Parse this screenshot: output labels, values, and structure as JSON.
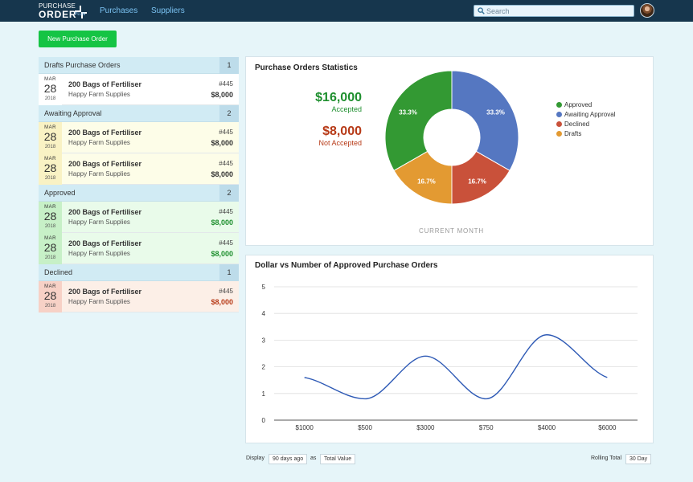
{
  "header": {
    "logo_line1": "PURCHASE",
    "logo_line2": "ORDER",
    "logo_plus": "PLUS",
    "nav": [
      "Purchases",
      "Suppliers"
    ],
    "search_placeholder": "Search",
    "icons": {
      "search": "search-icon",
      "avatar": "avatar"
    }
  },
  "actions": {
    "new_order": "New Purchase Order"
  },
  "colors": {
    "approved": "#339933",
    "awaiting": "#5577c1",
    "declined": "#c9513a",
    "drafts": "#e39a32",
    "green_text": "#1e8f2e",
    "red_text": "#b73a17"
  },
  "groups": [
    {
      "title": "Drafts Purchase Orders",
      "count": "1",
      "status": "draft",
      "items": [
        {
          "month": "MAR",
          "day": "28",
          "year": "2018",
          "name": "200 Bags of Fertiliser",
          "supplier": "Happy Farm Supplies",
          "number": "#445",
          "amount": "$8,000"
        }
      ]
    },
    {
      "title": "Awaiting Approval",
      "count": "2",
      "status": "awaiting",
      "items": [
        {
          "month": "MAR",
          "day": "28",
          "year": "2018",
          "name": "200 Bags of Fertiliser",
          "supplier": "Happy Farm Supplies",
          "number": "#445",
          "amount": "$8,000"
        },
        {
          "month": "MAR",
          "day": "28",
          "year": "2018",
          "name": "200 Bags of Fertiliser",
          "supplier": "Happy Farm Supplies",
          "number": "#445",
          "amount": "$8,000"
        }
      ]
    },
    {
      "title": "Approved",
      "count": "2",
      "status": "approved",
      "items": [
        {
          "month": "MAR",
          "day": "28",
          "year": "2018",
          "name": "200 Bags of Fertiliser",
          "supplier": "Happy Farm Supplies",
          "number": "#445",
          "amount": "$8,000"
        },
        {
          "month": "MAR",
          "day": "28",
          "year": "2018",
          "name": "200 Bags of Fertiliser",
          "supplier": "Happy Farm Supplies",
          "number": "#445",
          "amount": "$8,000"
        }
      ]
    },
    {
      "title": "Declined",
      "count": "1",
      "status": "declined",
      "items": [
        {
          "month": "MAR",
          "day": "28",
          "year": "2018",
          "name": "200 Bags of Fertiliser",
          "supplier": "Happy Farm Supplies",
          "number": "#445",
          "amount": "$8,000"
        }
      ]
    }
  ],
  "stats": {
    "title": "Purchase Orders Statistics",
    "accepted_value": "$16,000",
    "accepted_label": "Accepted",
    "not_accepted_value": "$8,000",
    "not_accepted_label": "Not Accepted",
    "period_label": "CURRENT MONTH"
  },
  "line_card": {
    "title": "Dollar vs Number of Approved Purchase Orders"
  },
  "chart_data": [
    {
      "type": "pie",
      "donut": true,
      "slices": [
        {
          "name": "Awaiting Approval",
          "value": 33.3,
          "label": "33.3%",
          "color": "#5577c1"
        },
        {
          "name": "Declined",
          "value": 16.7,
          "label": "16.7%",
          "color": "#c9513a"
        },
        {
          "name": "Drafts",
          "value": 16.7,
          "label": "16.7%",
          "color": "#e39a32"
        },
        {
          "name": "Approved",
          "value": 33.3,
          "label": "33.3%",
          "color": "#339933"
        }
      ],
      "legend": [
        "Approved",
        "Awaiting Approval",
        "Declined",
        "Drafts"
      ],
      "legend_placement": "right"
    },
    {
      "type": "line",
      "categories": [
        "$1000",
        "$500",
        "$3000",
        "$750",
        "$4000",
        "$6000"
      ],
      "values": [
        1.6,
        0.8,
        2.4,
        0.8,
        3.2,
        1.6
      ],
      "ylim": [
        0,
        5
      ],
      "yticks": [
        "0",
        "1",
        "2",
        "3",
        "4",
        "5"
      ],
      "grid": true,
      "smooth": true,
      "color": "#2d59b5"
    }
  ],
  "footer": {
    "display_label": "Display",
    "display_value": "90 days ago",
    "as_label": "as",
    "as_value": "Total Value",
    "rolling_label": "Rolling Total",
    "rolling_value": "30 Day"
  }
}
